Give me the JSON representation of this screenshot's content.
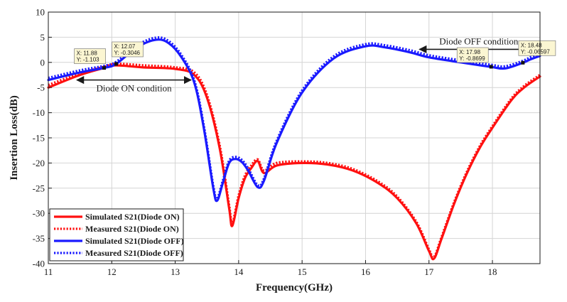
{
  "chart_data": {
    "type": "line",
    "title": "",
    "xlabel": "Frequency(GHz)",
    "ylabel": "Insertion Loss(dB)",
    "xlim": [
      11,
      18.75
    ],
    "ylim": [
      -40,
      10
    ],
    "xticks": [
      11,
      12,
      13,
      14,
      15,
      16,
      17,
      18
    ],
    "yticks": [
      10,
      5,
      0,
      -5,
      -10,
      -15,
      -20,
      -25,
      -30,
      -35,
      -40
    ],
    "grid": true,
    "legend_position": "bottom-left",
    "series": [
      {
        "name": "Simulated S21(Diode ON)",
        "color": "#ff1010",
        "style": "solid",
        "x": [
          11,
          11.5,
          11.88,
          12.07,
          12.5,
          13.0,
          13.3,
          13.5,
          13.7,
          13.85,
          13.9,
          14.0,
          14.1,
          14.2,
          14.3,
          14.4,
          14.6,
          15.0,
          15.4,
          15.8,
          16.2,
          16.5,
          16.8,
          17.0,
          17.08,
          17.2,
          17.4,
          17.6,
          17.8,
          18.0,
          18.3,
          18.5,
          18.75
        ],
        "y": [
          -5.0,
          -2.5,
          -1.1,
          -0.6,
          -1.0,
          -1.3,
          -2.5,
          -7.0,
          -17.0,
          -29.0,
          -32.5,
          -27.0,
          -23.0,
          -21.0,
          -19.6,
          -22.0,
          -20.5,
          -20.0,
          -20.3,
          -21.5,
          -24.0,
          -27.0,
          -32.0,
          -37.5,
          -39.0,
          -35.0,
          -28.0,
          -22.0,
          -17.0,
          -13.0,
          -7.5,
          -5.0,
          -2.8
        ]
      },
      {
        "name": "Measured S21(Diode ON)",
        "color": "#ff1010",
        "style": "dotted",
        "x": [
          11,
          11.5,
          11.88,
          12.07,
          12.5,
          13.0,
          13.3,
          13.5,
          13.7,
          13.85,
          13.9,
          14.0,
          14.1,
          14.2,
          14.3,
          14.4,
          14.6,
          15.0,
          15.4,
          15.8,
          16.2,
          16.5,
          16.8,
          17.0,
          17.08,
          17.2,
          17.4,
          17.6,
          17.8,
          18.0,
          18.3,
          18.5,
          18.75
        ],
        "y": [
          -4.5,
          -2.2,
          -0.9,
          -0.3,
          -0.6,
          -1.0,
          -2.0,
          -6.5,
          -16.5,
          -28.5,
          -32.0,
          -26.5,
          -22.5,
          -20.5,
          -19.3,
          -21.5,
          -20.0,
          -19.7,
          -20.0,
          -21.2,
          -23.7,
          -26.7,
          -31.7,
          -37.2,
          -38.7,
          -34.7,
          -27.7,
          -21.7,
          -16.7,
          -12.7,
          -7.2,
          -4.7,
          -2.5
        ]
      },
      {
        "name": "Simulated S21(Diode OFF)",
        "color": "#1a1aff",
        "style": "solid",
        "x": [
          11,
          11.5,
          11.88,
          12.07,
          12.4,
          12.7,
          12.9,
          13.1,
          13.3,
          13.45,
          13.6,
          13.66,
          13.75,
          13.85,
          13.95,
          14.05,
          14.15,
          14.3,
          14.4,
          14.6,
          15.0,
          15.5,
          16.0,
          16.3,
          16.7,
          17.0,
          17.5,
          17.98,
          18.2,
          18.48,
          18.6,
          18.75
        ],
        "y": [
          -3.5,
          -2.0,
          -1.1,
          -0.3,
          3.0,
          4.5,
          3.8,
          1.0,
          -4.0,
          -13.0,
          -25.0,
          -27.5,
          -24.0,
          -20.0,
          -19.2,
          -19.8,
          -21.5,
          -24.8,
          -23.5,
          -16.0,
          -6.0,
          0.8,
          3.2,
          3.0,
          2.0,
          1.0,
          0.0,
          -0.9,
          -1.2,
          -0.07,
          0.6,
          1.3
        ]
      },
      {
        "name": "Measured S21(Diode OFF)",
        "color": "#1a1aff",
        "style": "dotted",
        "x": [
          11,
          11.5,
          11.88,
          12.07,
          12.4,
          12.7,
          12.9,
          13.1,
          13.3,
          13.45,
          13.6,
          13.66,
          13.75,
          13.85,
          13.95,
          14.05,
          14.15,
          14.3,
          14.4,
          14.6,
          15.0,
          15.5,
          16.0,
          16.3,
          16.7,
          17.0,
          17.5,
          17.98,
          18.2,
          18.48,
          18.6,
          18.75
        ],
        "y": [
          -3.1,
          -1.6,
          -0.7,
          0.1,
          3.4,
          4.9,
          4.2,
          1.4,
          -3.6,
          -12.6,
          -24.6,
          -27.1,
          -23.6,
          -19.6,
          -18.8,
          -19.4,
          -21.1,
          -24.4,
          -23.1,
          -15.6,
          -5.6,
          1.2,
          3.6,
          3.4,
          2.4,
          1.4,
          0.4,
          -0.5,
          -0.8,
          0.3,
          1.0,
          1.7
        ]
      }
    ],
    "datatips": [
      {
        "x_label": "X: 11.88",
        "y_label": "Y: -1.103",
        "x": 11.88,
        "y": -1.103
      },
      {
        "x_label": "X: 12.07",
        "y_label": "Y: -0.3046",
        "x": 12.07,
        "y": -0.3046
      },
      {
        "x_label": "X: 17.98",
        "y_label": "Y: -0.8699",
        "x": 17.98,
        "y": -0.8699
      },
      {
        "x_label": "X: 18.48",
        "y_label": "Y: -0.06597",
        "x": 18.48,
        "y": -0.06597
      }
    ],
    "annotations": [
      {
        "text": "Diode ON condition",
        "x_from": 11.45,
        "x_to": 13.25,
        "y": -3.5
      },
      {
        "text": "Diode OFF condition",
        "x_from": 16.85,
        "x_to": 18.72,
        "y": 2.6
      }
    ]
  }
}
